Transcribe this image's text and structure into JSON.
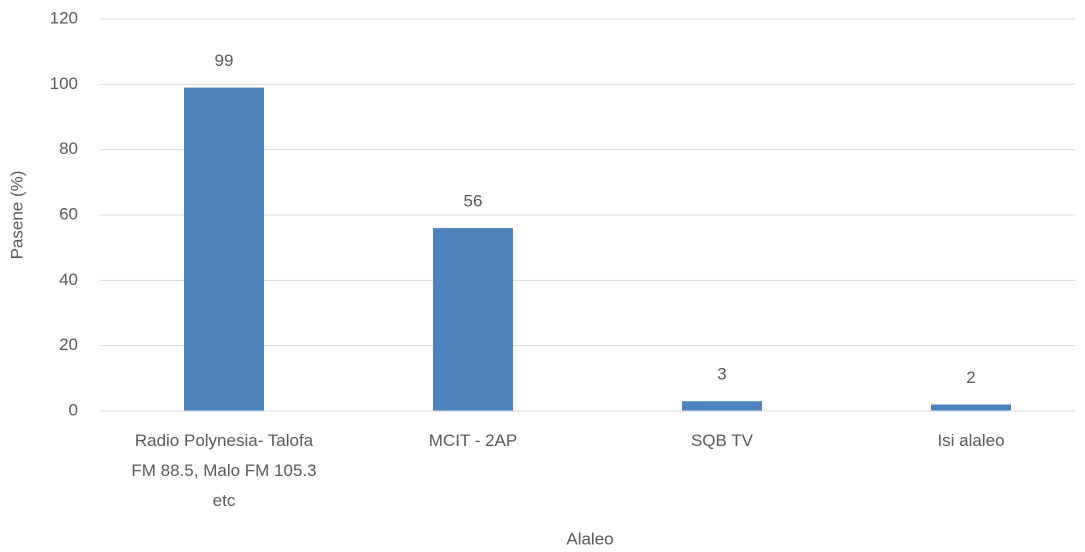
{
  "chart_data": {
    "type": "bar",
    "categories": [
      "Radio Polynesia- Talofa FM 88.5, Malo FM 105.3 etc",
      "MCIT - 2AP",
      "SQB TV",
      "Isi alaleo"
    ],
    "values": [
      99,
      56,
      3,
      2
    ],
    "color": "#4f81bd",
    "x_label": "Alaleo",
    "y_label": "Pasene (%)",
    "ylim": [
      0,
      120
    ],
    "yticks": [
      0,
      20,
      40,
      60,
      80,
      100,
      120
    ],
    "grid": true
  }
}
